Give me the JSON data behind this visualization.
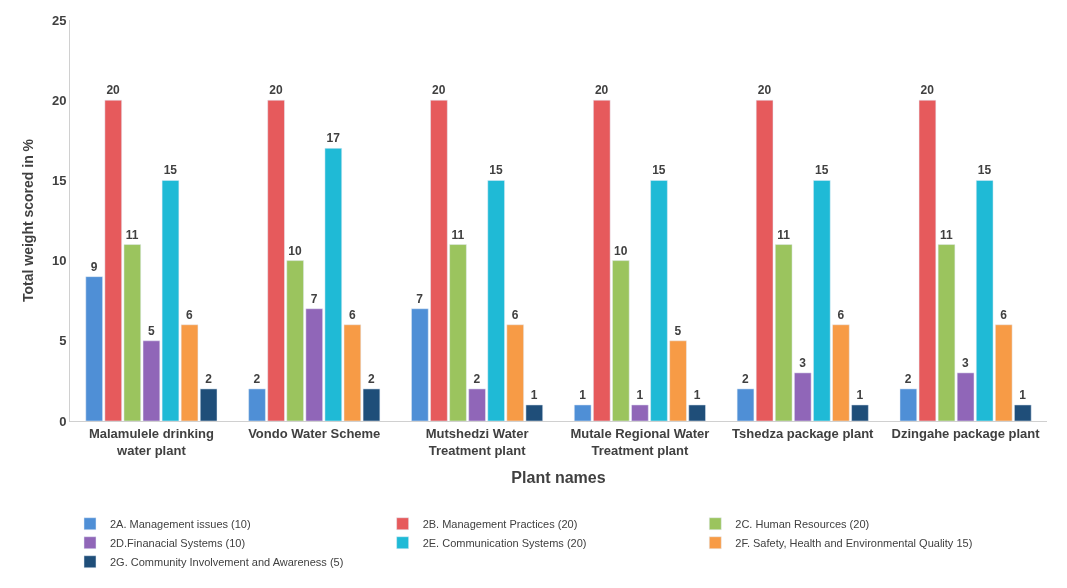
{
  "chart_data": {
    "type": "bar",
    "xlabel": "Plant names",
    "ylabel": "Total weight scored in %",
    "categories": [
      "Malamulele drinking\nwater plant",
      "Vondo Water Scheme",
      "Mutshedzi Water\nTreatment plant",
      "Mutale Regional Water\nTreatment plant",
      "Tshedza package plant",
      "Dzingahe package plant"
    ],
    "series": [
      {
        "name": "2A. Management issues (10)",
        "color": "#4f8fd6",
        "values": [
          9,
          2,
          7,
          1,
          2,
          2
        ]
      },
      {
        "name": "2B. Management Practices (20)",
        "color": "#e65a5c",
        "values": [
          20,
          20,
          20,
          20,
          20,
          20
        ]
      },
      {
        "name": "2C. Human Resources (20)",
        "color": "#9bc45e",
        "values": [
          11,
          10,
          11,
          10,
          11,
          11
        ]
      },
      {
        "name": "2D.Finanacial Systems (10)",
        "color": "#9066b8",
        "values": [
          5,
          7,
          2,
          1,
          3,
          3
        ]
      },
      {
        "name": "2E. Communication Systems (20)",
        "color": "#1fbad6",
        "values": [
          15,
          17,
          15,
          15,
          15,
          15
        ]
      },
      {
        "name": "2F. Safety, Health and Environmental Quality 15)",
        "color": "#f79b46",
        "values": [
          6,
          6,
          6,
          5,
          6,
          6
        ]
      },
      {
        "name": "2G. Community Involvement and Awareness (5)",
        "color": "#1f4e79",
        "values": [
          2,
          2,
          1,
          1,
          1,
          1
        ]
      }
    ],
    "ylim": [
      0,
      25
    ],
    "yticks": [
      0,
      5,
      10,
      15,
      20,
      25
    ],
    "data_labels": true,
    "legend": "bottom"
  }
}
